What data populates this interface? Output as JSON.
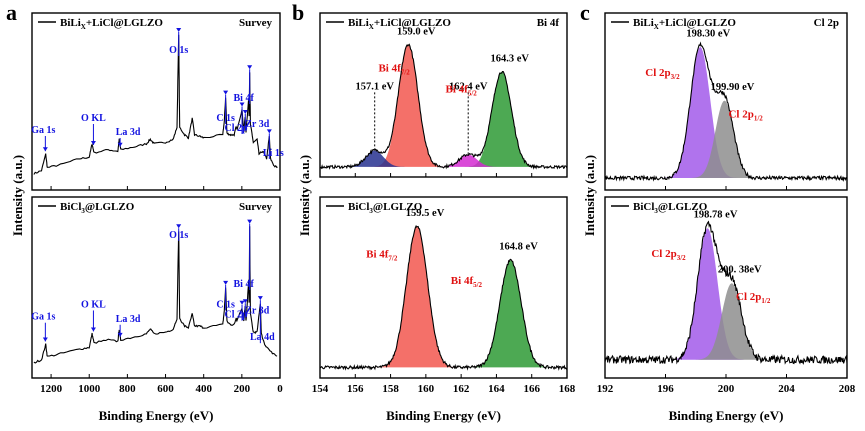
{
  "figure": {
    "description_free": true
  },
  "chart_data": [
    {
      "type": "line",
      "panel_letter": "a",
      "xlabel": "Binding Energy (eV)",
      "ylabel": "Intensity (a.u.)",
      "xlim": [
        1300,
        0
      ],
      "xticks": [
        1200,
        1000,
        800,
        600,
        400,
        200,
        0
      ],
      "reversed_x": true,
      "subplots": [
        {
          "sample": "BiLix+LiCl@LGLZO",
          "sample_parts": {
            "pre": "BiLi",
            "sub": "X",
            "post": "+LiCl@LGLZO"
          },
          "tag": "Survey",
          "series": {
            "name": "BiLix+LiCl@LGLZO survey",
            "points": [
              [
                1290,
                0.07
              ],
              [
                1250,
                0.09
              ],
              [
                1228,
                0.2
              ],
              [
                1220,
                0.11
              ],
              [
                1150,
                0.13
              ],
              [
                1050,
                0.17
              ],
              [
                1000,
                0.18
              ],
              [
                985,
                0.27
              ],
              [
                975,
                0.21
              ],
              [
                900,
                0.23
              ],
              [
                850,
                0.22
              ],
              [
                843,
                0.3
              ],
              [
                835,
                0.23
              ],
              [
                760,
                0.25
              ],
              [
                700,
                0.27
              ],
              [
                680,
                0.3
              ],
              [
                660,
                0.27
              ],
              [
                600,
                0.28
              ],
              [
                560,
                0.3
              ],
              [
                540,
                0.38
              ],
              [
                531,
                1.0
              ],
              [
                526,
                0.38
              ],
              [
                500,
                0.33
              ],
              [
                480,
                0.31
              ],
              [
                460,
                0.44
              ],
              [
                448,
                0.33
              ],
              [
                420,
                0.32
              ],
              [
                400,
                0.31
              ],
              [
                300,
                0.33
              ],
              [
                292,
                0.42
              ],
              [
                285,
                0.58
              ],
              [
                278,
                0.34
              ],
              [
                260,
                0.33
              ],
              [
                240,
                0.33
              ],
              [
                231,
                0.38
              ],
              [
                225,
                0.37
              ],
              [
                199,
                0.5
              ],
              [
                190,
                0.35
              ],
              [
                183,
                0.45
              ],
              [
                178,
                0.35
              ],
              [
                164,
                0.58
              ],
              [
                162,
                0.45
              ],
              [
                159,
                0.75
              ],
              [
                155,
                0.4
              ],
              [
                140,
                0.28
              ],
              [
                120,
                0.3
              ],
              [
                110,
                0.2
              ],
              [
                90,
                0.22
              ],
              [
                70,
                0.17
              ],
              [
                56,
                0.32
              ],
              [
                50,
                0.17
              ],
              [
                30,
                0.12
              ],
              [
                10,
                0.11
              ]
            ]
          },
          "annotations": [
            {
              "text": "O 1s",
              "x": 531
            },
            {
              "text": "Ga 1s",
              "x": 1230
            },
            {
              "text": "O KL",
              "x": 978
            },
            {
              "text": "La 3d",
              "x": 838
            },
            {
              "text": "C 1s",
              "x": 285
            },
            {
              "text": "Cl 2p",
              "x": 199
            },
            {
              "text": "Bi 4f",
              "x": 159
            },
            {
              "text": "Zr 3d",
              "x": 182
            },
            {
              "text": "Li 1s",
              "x": 56
            }
          ]
        },
        {
          "sample": "BiCl3@LGLZO",
          "sample_parts": {
            "pre": "BiCl",
            "sub": "3",
            "post": "@LGLZO"
          },
          "tag": "Survey",
          "series": {
            "name": "BiCl3@LGLZO survey",
            "points": [
              [
                1290,
                0.06
              ],
              [
                1250,
                0.08
              ],
              [
                1228,
                0.18
              ],
              [
                1220,
                0.1
              ],
              [
                1150,
                0.12
              ],
              [
                1050,
                0.15
              ],
              [
                1000,
                0.16
              ],
              [
                985,
                0.25
              ],
              [
                975,
                0.19
              ],
              [
                900,
                0.21
              ],
              [
                850,
                0.2
              ],
              [
                843,
                0.28
              ],
              [
                835,
                0.21
              ],
              [
                760,
                0.23
              ],
              [
                700,
                0.25
              ],
              [
                680,
                0.28
              ],
              [
                660,
                0.25
              ],
              [
                600,
                0.26
              ],
              [
                560,
                0.28
              ],
              [
                540,
                0.35
              ],
              [
                531,
                0.92
              ],
              [
                526,
                0.35
              ],
              [
                500,
                0.3
              ],
              [
                480,
                0.29
              ],
              [
                460,
                0.38
              ],
              [
                448,
                0.3
              ],
              [
                420,
                0.3
              ],
              [
                400,
                0.29
              ],
              [
                300,
                0.31
              ],
              [
                292,
                0.4
              ],
              [
                285,
                0.55
              ],
              [
                278,
                0.33
              ],
              [
                260,
                0.31
              ],
              [
                240,
                0.31
              ],
              [
                231,
                0.35
              ],
              [
                225,
                0.34
              ],
              [
                199,
                0.42
              ],
              [
                190,
                0.33
              ],
              [
                183,
                0.43
              ],
              [
                178,
                0.33
              ],
              [
                164,
                0.6
              ],
              [
                162,
                0.45
              ],
              [
                159,
                0.95
              ],
              [
                155,
                0.38
              ],
              [
                140,
                0.26
              ],
              [
                120,
                0.26
              ],
              [
                103,
                0.45
              ],
              [
                98,
                0.25
              ],
              [
                80,
                0.18
              ],
              [
                60,
                0.15
              ],
              [
                40,
                0.12
              ],
              [
                10,
                0.1
              ]
            ]
          },
          "annotations": [
            {
              "text": "O 1s",
              "x": 531
            },
            {
              "text": "Ga 1s",
              "x": 1230
            },
            {
              "text": "O KL",
              "x": 978
            },
            {
              "text": "La 3d",
              "x": 838
            },
            {
              "text": "C 1s",
              "x": 285
            },
            {
              "text": "Cl 2p",
              "x": 199
            },
            {
              "text": "Bi 4f",
              "x": 159
            },
            {
              "text": "Zr 3d",
              "x": 182
            },
            {
              "text": "La 4d",
              "x": 103
            }
          ]
        }
      ]
    },
    {
      "type": "area",
      "panel_letter": "b",
      "xlabel": "Binding Energy (eV)",
      "ylabel": "Intensity (a.u.)",
      "xlim": [
        154,
        168
      ],
      "xticks": [
        154,
        156,
        158,
        160,
        162,
        164,
        166,
        168
      ],
      "subplots": [
        {
          "sample": "BiLix+LiCl@LGLZO",
          "sample_parts": {
            "pre": "BiLi",
            "sub": "X",
            "post": "+LiCl@LGLZO"
          },
          "tag": "Bi 4f",
          "peaks": [
            {
              "name": "Bi 4f7/2",
              "center": 159.0,
              "amplitude": 0.9,
              "sigma": 0.55,
              "color": "#f2574f"
            },
            {
              "name": "Bi 4f5/2",
              "center": 164.3,
              "amplitude": 0.7,
              "sigma": 0.55,
              "color": "#2e9a35"
            },
            {
              "name": "157.1 eV component",
              "center": 157.1,
              "amplitude": 0.12,
              "sigma": 0.5,
              "color": "#27318f"
            },
            {
              "name": "162.4 eV component",
              "center": 162.4,
              "amplitude": 0.09,
              "sigma": 0.5,
              "color": "#d42ad1"
            }
          ],
          "baseline": 0.03,
          "labels": [
            {
              "value": "159.0 eV",
              "x": 159.0
            },
            {
              "value": "164.3 eV",
              "x": 164.3
            },
            {
              "value": "157.1 eV",
              "x": 157.1
            },
            {
              "value": "162.4 eV",
              "x": 162.4
            }
          ],
          "component_labels": [
            {
              "main": "Bi 4f",
              "sub": "7/2",
              "x": 158.2
            },
            {
              "main": "Bi 4f",
              "sub": "5/2",
              "x": 162.0
            }
          ]
        },
        {
          "sample": "BiCl3@LGLZO",
          "sample_parts": {
            "pre": "BiCl",
            "sub": "3",
            "post": "@LGLZO"
          },
          "tag": "",
          "peaks": [
            {
              "name": "Bi 4f7/2",
              "center": 159.5,
              "amplitude": 0.92,
              "sigma": 0.6,
              "color": "#f2574f"
            },
            {
              "name": "Bi 4f5/2",
              "center": 164.8,
              "amplitude": 0.7,
              "sigma": 0.6,
              "color": "#2e9a35"
            }
          ],
          "baseline": 0.03,
          "labels": [
            {
              "value": "159.5 eV",
              "x": 159.5
            },
            {
              "value": "164.8 eV",
              "x": 164.8
            }
          ],
          "component_labels": [
            {
              "main": "Bi 4f",
              "sub": "7/2",
              "x": 157.5
            },
            {
              "main": "Bi 4f",
              "sub": "5/2",
              "x": 162.3
            }
          ]
        }
      ]
    },
    {
      "type": "area",
      "panel_letter": "c",
      "xlabel": "Binding Energy (eV)",
      "ylabel": "Intensity (a.u.)",
      "xlim": [
        192,
        208
      ],
      "xticks": [
        192,
        196,
        200,
        204,
        208
      ],
      "subplots": [
        {
          "sample": "BiLix+LiCl@LGLZO",
          "sample_parts": {
            "pre": "BiLi",
            "sub": "X",
            "post": "+LiCl@LGLZO"
          },
          "tag": "Cl 2p",
          "peaks": [
            {
              "name": "Cl 2p3/2",
              "center": 198.3,
              "amplitude": 0.88,
              "sigma": 0.65,
              "color": "#a25bea"
            },
            {
              "name": "Cl 2p1/2",
              "center": 199.9,
              "amplitude": 0.52,
              "sigma": 0.6,
              "color": "#8e8e8e"
            }
          ],
          "baseline": 0.04,
          "labels": [
            {
              "value": "198.30 eV",
              "x": 198.3
            },
            {
              "value": "199.90 eV",
              "x": 199.9
            }
          ],
          "component_labels": [
            {
              "main": "Cl 2p",
              "sub": "3/2",
              "x": 195.8
            },
            {
              "main": "Cl 2p",
              "sub": "1/2",
              "x": 201.3
            }
          ]
        },
        {
          "sample": "BiCl3@LGLZO",
          "sample_parts": {
            "pre": "BiCl",
            "sub": "3",
            "post": "@LGLZO"
          },
          "tag": "",
          "peaks": [
            {
              "name": "Cl 2p3/2",
              "center": 198.78,
              "amplitude": 0.86,
              "sigma": 0.65,
              "color": "#a25bea"
            },
            {
              "name": "Cl 2p1/2",
              "center": 200.38,
              "amplitude": 0.5,
              "sigma": 0.65,
              "color": "#8e8e8e"
            }
          ],
          "baseline": 0.08,
          "labels": [
            {
              "value": "198.78 eV",
              "x": 198.78
            },
            {
              "value": "200. 38eV",
              "x": 200.38
            }
          ],
          "component_labels": [
            {
              "main": "Cl 2p",
              "sub": "3/2",
              "x": 196.2
            },
            {
              "main": "Cl 2p",
              "sub": "1/2",
              "x": 201.8
            }
          ]
        }
      ]
    }
  ],
  "colors": {
    "annotation_blue": "#1212e0",
    "label_red": "#e01010",
    "axis": "#000000"
  }
}
